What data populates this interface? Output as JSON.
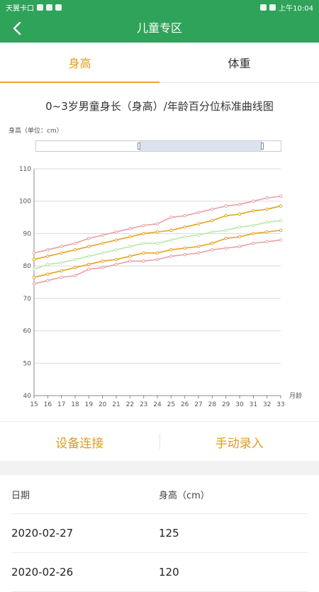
{
  "status_bar": {
    "carrier": "天翼卡口",
    "time": "上午10:04"
  },
  "header": {
    "title": "儿童专区",
    "back_icon": "chevron-left-icon"
  },
  "tabs": [
    {
      "label": "身高",
      "active": true
    },
    {
      "label": "体重",
      "active": false
    }
  ],
  "chart": {
    "title": "0~3岁男童身长（身高）/年龄百分位标准曲线图",
    "y_unit_label": "身高（单位：cm）",
    "x_unit_label": "月龄",
    "colors": {
      "outer": "#e7a0a6",
      "mid": "#e6a21e",
      "center": "#b6e8a8",
      "grid": "#d9d9d9"
    }
  },
  "chart_data": {
    "type": "line",
    "x": [
      15,
      16,
      17,
      18,
      19,
      20,
      21,
      22,
      23,
      24,
      25,
      26,
      27,
      28,
      29,
      30,
      31,
      32,
      33
    ],
    "xlabel": "月龄",
    "ylabel": "身高（单位：cm）",
    "ylim": [
      40,
      110
    ],
    "yticks": [
      40,
      50,
      60,
      70,
      80,
      90,
      100,
      110
    ],
    "grid": true,
    "series": [
      {
        "values": [
          84,
          85,
          86,
          87,
          88.5,
          89.5,
          90.5,
          91.5,
          92.5,
          93,
          95,
          95.5,
          96.5,
          97.5,
          98.5,
          99,
          100,
          101,
          101.5
        ]
      },
      {
        "values": [
          82,
          83,
          84,
          85,
          86,
          87,
          88,
          89,
          90,
          90.5,
          91,
          92,
          93,
          94,
          95.5,
          96,
          97,
          97.5,
          98.5
        ]
      },
      {
        "values": [
          79,
          80.5,
          81,
          82,
          83,
          84,
          85,
          86,
          87,
          87,
          88,
          89,
          89.5,
          90.5,
          91,
          92,
          92.5,
          93.5,
          94
        ]
      },
      {
        "values": [
          76.5,
          77.5,
          78.5,
          79.5,
          80.5,
          81.5,
          82,
          83,
          84,
          84,
          85,
          85.5,
          86,
          87,
          88.5,
          89,
          90,
          90.5,
          91
        ]
      },
      {
        "values": [
          74.5,
          75.5,
          76.5,
          77,
          79,
          79.5,
          80.5,
          81.5,
          81.5,
          82,
          83,
          83.5,
          84,
          85,
          85.5,
          86,
          87,
          87.5,
          88
        ]
      }
    ]
  },
  "actions": {
    "device_connect": "设备连接",
    "manual_entry": "手动录入"
  },
  "table": {
    "header": {
      "date": "日期",
      "height": "身高（cm）"
    },
    "rows": [
      {
        "date": "2020-02-27",
        "height": "125"
      },
      {
        "date": "2020-02-26",
        "height": "120"
      }
    ]
  }
}
